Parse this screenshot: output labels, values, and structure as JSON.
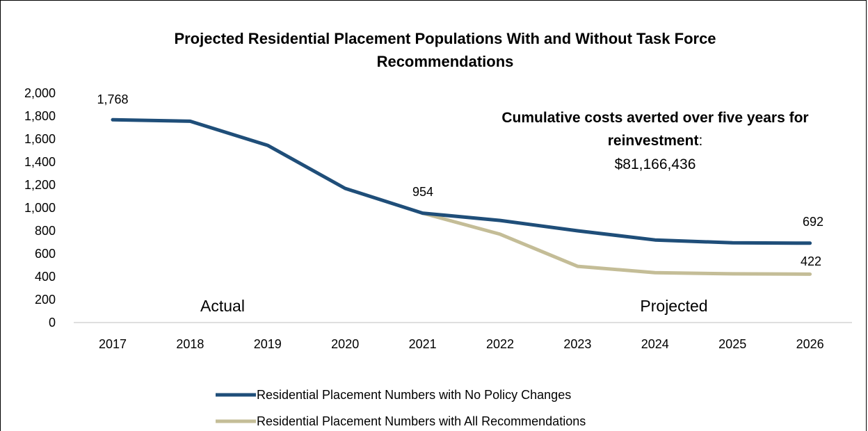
{
  "chart_data": {
    "type": "line",
    "title_line1": "Projected Residential Placement Populations With and Without Task Force",
    "title_line2": "Recommendations",
    "categories": [
      "2017",
      "2018",
      "2019",
      "2020",
      "2021",
      "2022",
      "2023",
      "2024",
      "2025",
      "2026"
    ],
    "ylim": [
      0,
      2000
    ],
    "yticks": [
      "0",
      "200",
      "400",
      "600",
      "800",
      "1,000",
      "1,200",
      "1,400",
      "1,600",
      "1,800",
      "2,000"
    ],
    "grid": false,
    "legend_position": "bottom",
    "colors": {
      "no_policy": "#1F4E79",
      "recommendations": "#C4BD97",
      "axis": "#BFBFBF"
    },
    "series": [
      {
        "name": "Residential Placement Numbers with No Policy Changes",
        "key": "no_policy",
        "values": [
          1768,
          1755,
          1545,
          1170,
          954,
          890,
          800,
          720,
          695,
          692
        ]
      },
      {
        "name": "Residential Placement Numbers with All Recommendations",
        "key": "recommendations",
        "values": [
          null,
          null,
          null,
          null,
          954,
          770,
          490,
          435,
          425,
          422
        ]
      }
    ],
    "data_labels": [
      "1,768",
      "954",
      "692",
      "422"
    ],
    "region_labels": [
      "Actual",
      "Projected"
    ],
    "annotation": {
      "bold_text_line1": "Cumulative costs averted over five years for",
      "bold_text_line2": "reinvestment",
      "colon": ":",
      "amount": "$81,166,436"
    }
  }
}
